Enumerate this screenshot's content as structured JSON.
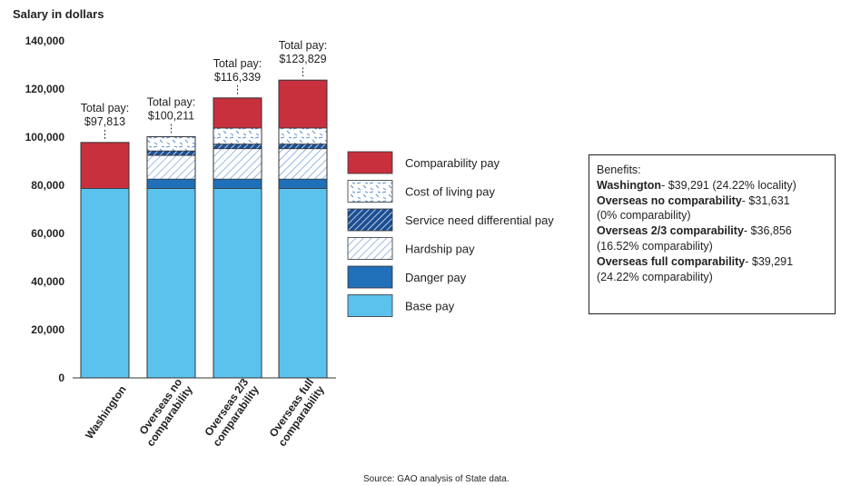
{
  "chart_data": {
    "type": "bar",
    "stacked": true,
    "ylabel": "Salary in dollars",
    "ylim": [
      0,
      140000
    ],
    "yticks": [
      0,
      20000,
      40000,
      60000,
      80000,
      100000,
      120000,
      140000
    ],
    "ytick_labels": [
      "0",
      "20,000",
      "40,000",
      "60,000",
      "80,000",
      "100,000",
      "120,000",
      "140,000"
    ],
    "categories": [
      "Washington",
      "Overseas no comparability",
      "Overseas 2/3 comparability",
      "Overseas full comparability"
    ],
    "category_lines": [
      [
        "Washington"
      ],
      [
        "Overseas no",
        "comparability"
      ],
      [
        "Overseas 2/3",
        "comparability"
      ],
      [
        "Overseas full",
        "comparability"
      ]
    ],
    "series": [
      {
        "name": "Base pay",
        "color": "#5bc2ee",
        "pattern": "solid",
        "values": [
          78700.0,
          78700.0,
          78700.0,
          78700.0
        ]
      },
      {
        "name": "Danger pay",
        "color": "#1f6fb9",
        "pattern": "solid",
        "values": [
          0,
          3900.0,
          3900.0,
          3900.0
        ]
      },
      {
        "name": "Hardship pay",
        "color": "#5a8fcf",
        "pattern": "light-hatch",
        "values": [
          0,
          9800.0,
          12600.0,
          12600.0
        ]
      },
      {
        "name": "Service need differential pay",
        "color": "#1c4f93",
        "pattern": "dark-hatch",
        "values": [
          0,
          1900.0,
          1900.0,
          1900.0
        ]
      },
      {
        "name": "Cost of living pay",
        "color": "#5a8fcf",
        "pattern": "dash",
        "values": [
          0,
          5900.0,
          6700.0,
          6700.0
        ]
      },
      {
        "name": "Comparability pay",
        "color": "#c8303e",
        "pattern": "solid",
        "values": [
          19100.0,
          0,
          12500.0,
          19900.0
        ]
      }
    ],
    "totals_label": "Total pay:",
    "totals": [
      "$97,813",
      "$100,211",
      "$116,339",
      "$123,829"
    ],
    "legend_order": [
      "Comparability pay",
      "Cost of living pay",
      "Service need differential pay",
      "Hardship pay",
      "Danger pay",
      "Base pay"
    ],
    "source": "Source: GAO analysis of State data."
  },
  "benefits": {
    "title": "Benefits:",
    "rows": [
      {
        "name": "Washington",
        "text": "- $39,291 (24.22% locality)"
      },
      {
        "name": "Overseas no comparability",
        "text": "- $31,631",
        "sub": "(0% comparability)"
      },
      {
        "name": "Overseas 2/3 comparability",
        "text": "- $36,856",
        "sub": "(16.52% comparability)"
      },
      {
        "name": "Overseas full comparability",
        "text": "- $39,291",
        "sub": "(24.22% comparability)"
      }
    ]
  }
}
